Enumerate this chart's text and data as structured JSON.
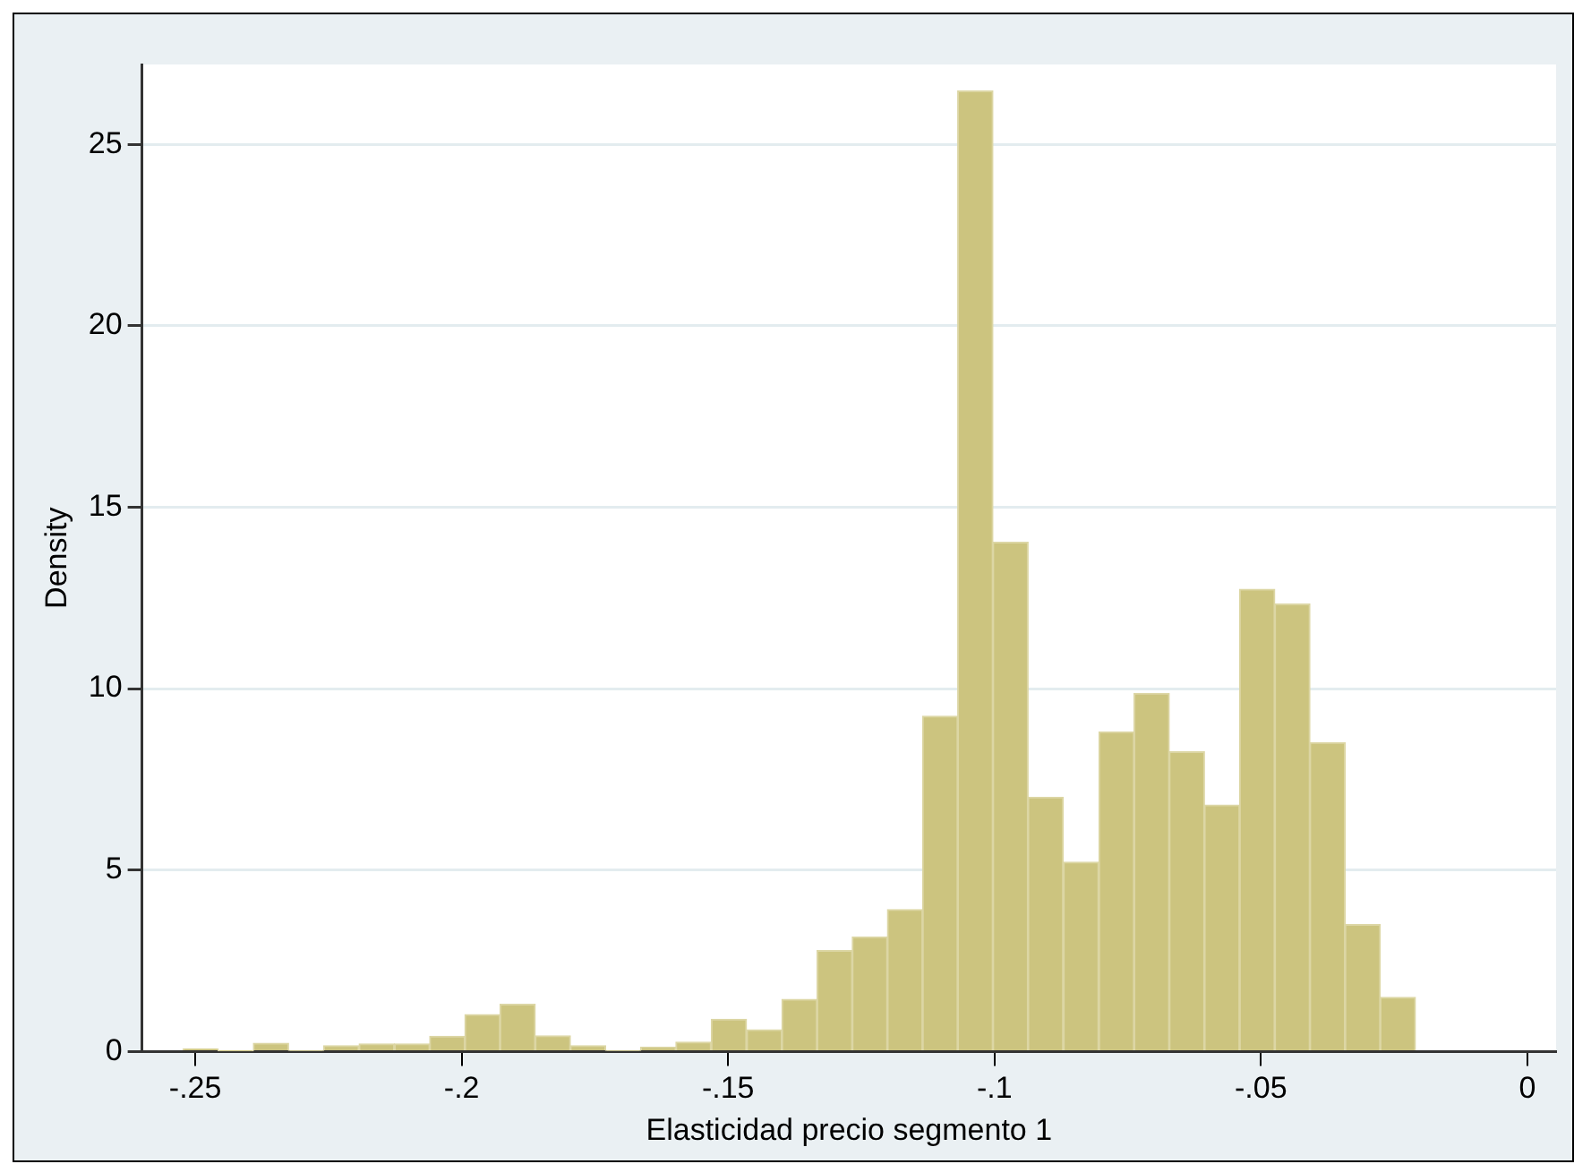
{
  "chart_data": {
    "type": "histogram",
    "xlabel": "Elasticidad precio segmento 1",
    "ylabel": "Density",
    "color": "#ccc47f",
    "bins": [
      -0.2523,
      -0.2457,
      -0.2391,
      -0.2325,
      -0.2259,
      -0.2193,
      -0.2126,
      -0.206,
      -0.1994,
      -0.1928,
      -0.1862,
      -0.1796,
      -0.173,
      -0.1664,
      -0.1598,
      -0.1532,
      -0.1465,
      -0.1399,
      -0.1333,
      -0.1267,
      -0.1201,
      -0.1135,
      -0.1069,
      -0.1003,
      -0.0937,
      -0.0871,
      -0.0804,
      -0.0738,
      -0.0672,
      -0.0606,
      -0.054,
      -0.0474,
      -0.0408,
      -0.0342,
      -0.0276,
      -0.021
    ],
    "values": [
      0.07,
      0.02,
      0.23,
      0.03,
      0.16,
      0.21,
      0.21,
      0.42,
      1.02,
      1.3,
      0.43,
      0.16,
      0.03,
      0.12,
      0.26,
      0.89,
      0.6,
      1.44,
      2.78,
      3.16,
      3.91,
      9.24,
      26.47,
      14.03,
      7.01,
      5.22,
      8.81,
      9.87,
      8.26,
      6.79,
      12.74,
      12.33,
      8.51,
      3.5,
      1.49
    ],
    "xlim": [
      -0.26,
      0.0054
    ],
    "ylim": [
      0,
      27.2
    ],
    "xticks": [
      {
        "value": -0.25,
        "label": "-.25"
      },
      {
        "value": -0.2,
        "label": "-.2"
      },
      {
        "value": -0.15,
        "label": "-.15"
      },
      {
        "value": -0.1,
        "label": "-.1"
      },
      {
        "value": -0.05,
        "label": "-.05"
      },
      0
    ],
    "yticks": [
      0,
      5,
      10,
      15,
      20,
      25
    ],
    "grid": "y"
  }
}
